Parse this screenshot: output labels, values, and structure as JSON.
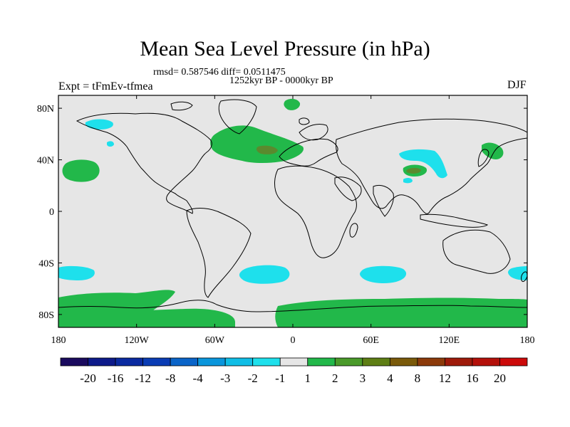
{
  "title": "Mean Sea Level Pressure (in hPa)",
  "stats": "rmsd= 0.587546 diff= 0.0511475",
  "period": "1252kyr BP - 0000kyr BP",
  "experiment": "Expt = tFmEv-tfmea",
  "season": "DJF",
  "map": {
    "lat_ticks": [
      {
        "value": 80,
        "label": "80N"
      },
      {
        "value": 40,
        "label": "40N"
      },
      {
        "value": 0,
        "label": "0"
      },
      {
        "value": -40,
        "label": "40S"
      },
      {
        "value": -80,
        "label": "80S"
      }
    ],
    "lon_ticks": [
      {
        "value": -180,
        "label": "180"
      },
      {
        "value": -120,
        "label": "120W"
      },
      {
        "value": -60,
        "label": "60W"
      },
      {
        "value": 0,
        "label": "0"
      },
      {
        "value": 60,
        "label": "60E"
      },
      {
        "value": 120,
        "label": "120E"
      },
      {
        "value": 180,
        "label": "180"
      }
    ],
    "lat_range": [
      -90,
      90
    ],
    "lon_range": [
      -180,
      180
    ]
  },
  "colorbar": {
    "labels": [
      "-20",
      "-16",
      "-12",
      "-8",
      "-4",
      "-3",
      "-2",
      "-1",
      "1",
      "2",
      "3",
      "4",
      "8",
      "12",
      "16",
      "20"
    ],
    "colors": [
      "#1a0a5e",
      "#0d1a8a",
      "#0a2aa0",
      "#0a3cb4",
      "#0a64c8",
      "#0a96dc",
      "#10bee6",
      "#1ee0ec",
      "#e6e6e6",
      "#22b84a",
      "#4a9a2a",
      "#5e7e14",
      "#7a5a0a",
      "#8c3a0a",
      "#9e1a0a",
      "#b4100a",
      "#cc0a0a"
    ]
  },
  "colors": {
    "neutral": "#e6e6e6",
    "positive_1_2": "#22b84a",
    "positive_2_3": "#5a8a2e",
    "negative_1_2": "#1ee0ec",
    "coastline": "#000000"
  }
}
